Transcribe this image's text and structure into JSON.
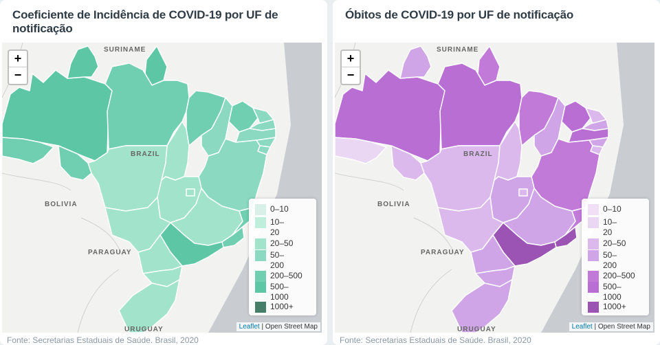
{
  "colors": {
    "incidence": [
      "#d8f0e7",
      "#bfeedd",
      "#a2e3cc",
      "#8ad9c0",
      "#6fcfb0",
      "#5dc6a5",
      "#457d69"
    ],
    "deaths": [
      "#f1e0f5",
      "#ead7f3",
      "#dcb9ec",
      "#d0a5e7",
      "#c27ad9",
      "#b86ed3",
      "#9c54b4"
    ]
  },
  "panels": [
    {
      "id": "incidence",
      "title": "Coeficiente de Incidência de COVID-19 por UF de notificação",
      "source": "Fonte: Secretarias Estaduais de Saúde. Brasil, 2020"
    },
    {
      "id": "deaths",
      "title": "Óbitos de COVID-19 por UF de notificação",
      "source": "Fonte: Secretarias Estaduais de Saúde. Brasil, 2020"
    }
  ],
  "map_labels": {
    "suriname": "SURINAME",
    "brazil": "BRAZIL",
    "bolivia": "BOLIVIA",
    "paraguay": "PARAGUAY",
    "uruguay": "URUGUAY"
  },
  "legend": [
    "0–10",
    "10–\n20",
    "20–50",
    "50–\n200",
    "200–500",
    "500–\n1000",
    "1000+"
  ],
  "zoom": {
    "in": "+",
    "out": "−"
  },
  "attribution": {
    "leaflet": "Leaflet",
    "osm": "| Open Street Map"
  },
  "states": {
    "AM": [
      5,
      5
    ],
    "RR": [
      5,
      3
    ],
    "AP": [
      5,
      4
    ],
    "PA": [
      4,
      5
    ],
    "AC": [
      4,
      1
    ],
    "RO": [
      4,
      2
    ],
    "MT": [
      2,
      2
    ],
    "TO": [
      2,
      2
    ],
    "MA": [
      4,
      4
    ],
    "PI": [
      3,
      3
    ],
    "CE": [
      4,
      5
    ],
    "RN": [
      3,
      2
    ],
    "PB": [
      3,
      3
    ],
    "PE": [
      3,
      5
    ],
    "AL": [
      3,
      3
    ],
    "SE": [
      3,
      2
    ],
    "BA": [
      3,
      4
    ],
    "GO": [
      2,
      3
    ],
    "DF": [
      2,
      2
    ],
    "MG": [
      2,
      3
    ],
    "ES": [
      4,
      4
    ],
    "RJ": [
      4,
      6
    ],
    "SP": [
      5,
      6
    ],
    "MS": [
      2,
      2
    ],
    "PR": [
      2,
      3
    ],
    "SC": [
      2,
      3
    ],
    "RS": [
      2,
      3
    ]
  }
}
